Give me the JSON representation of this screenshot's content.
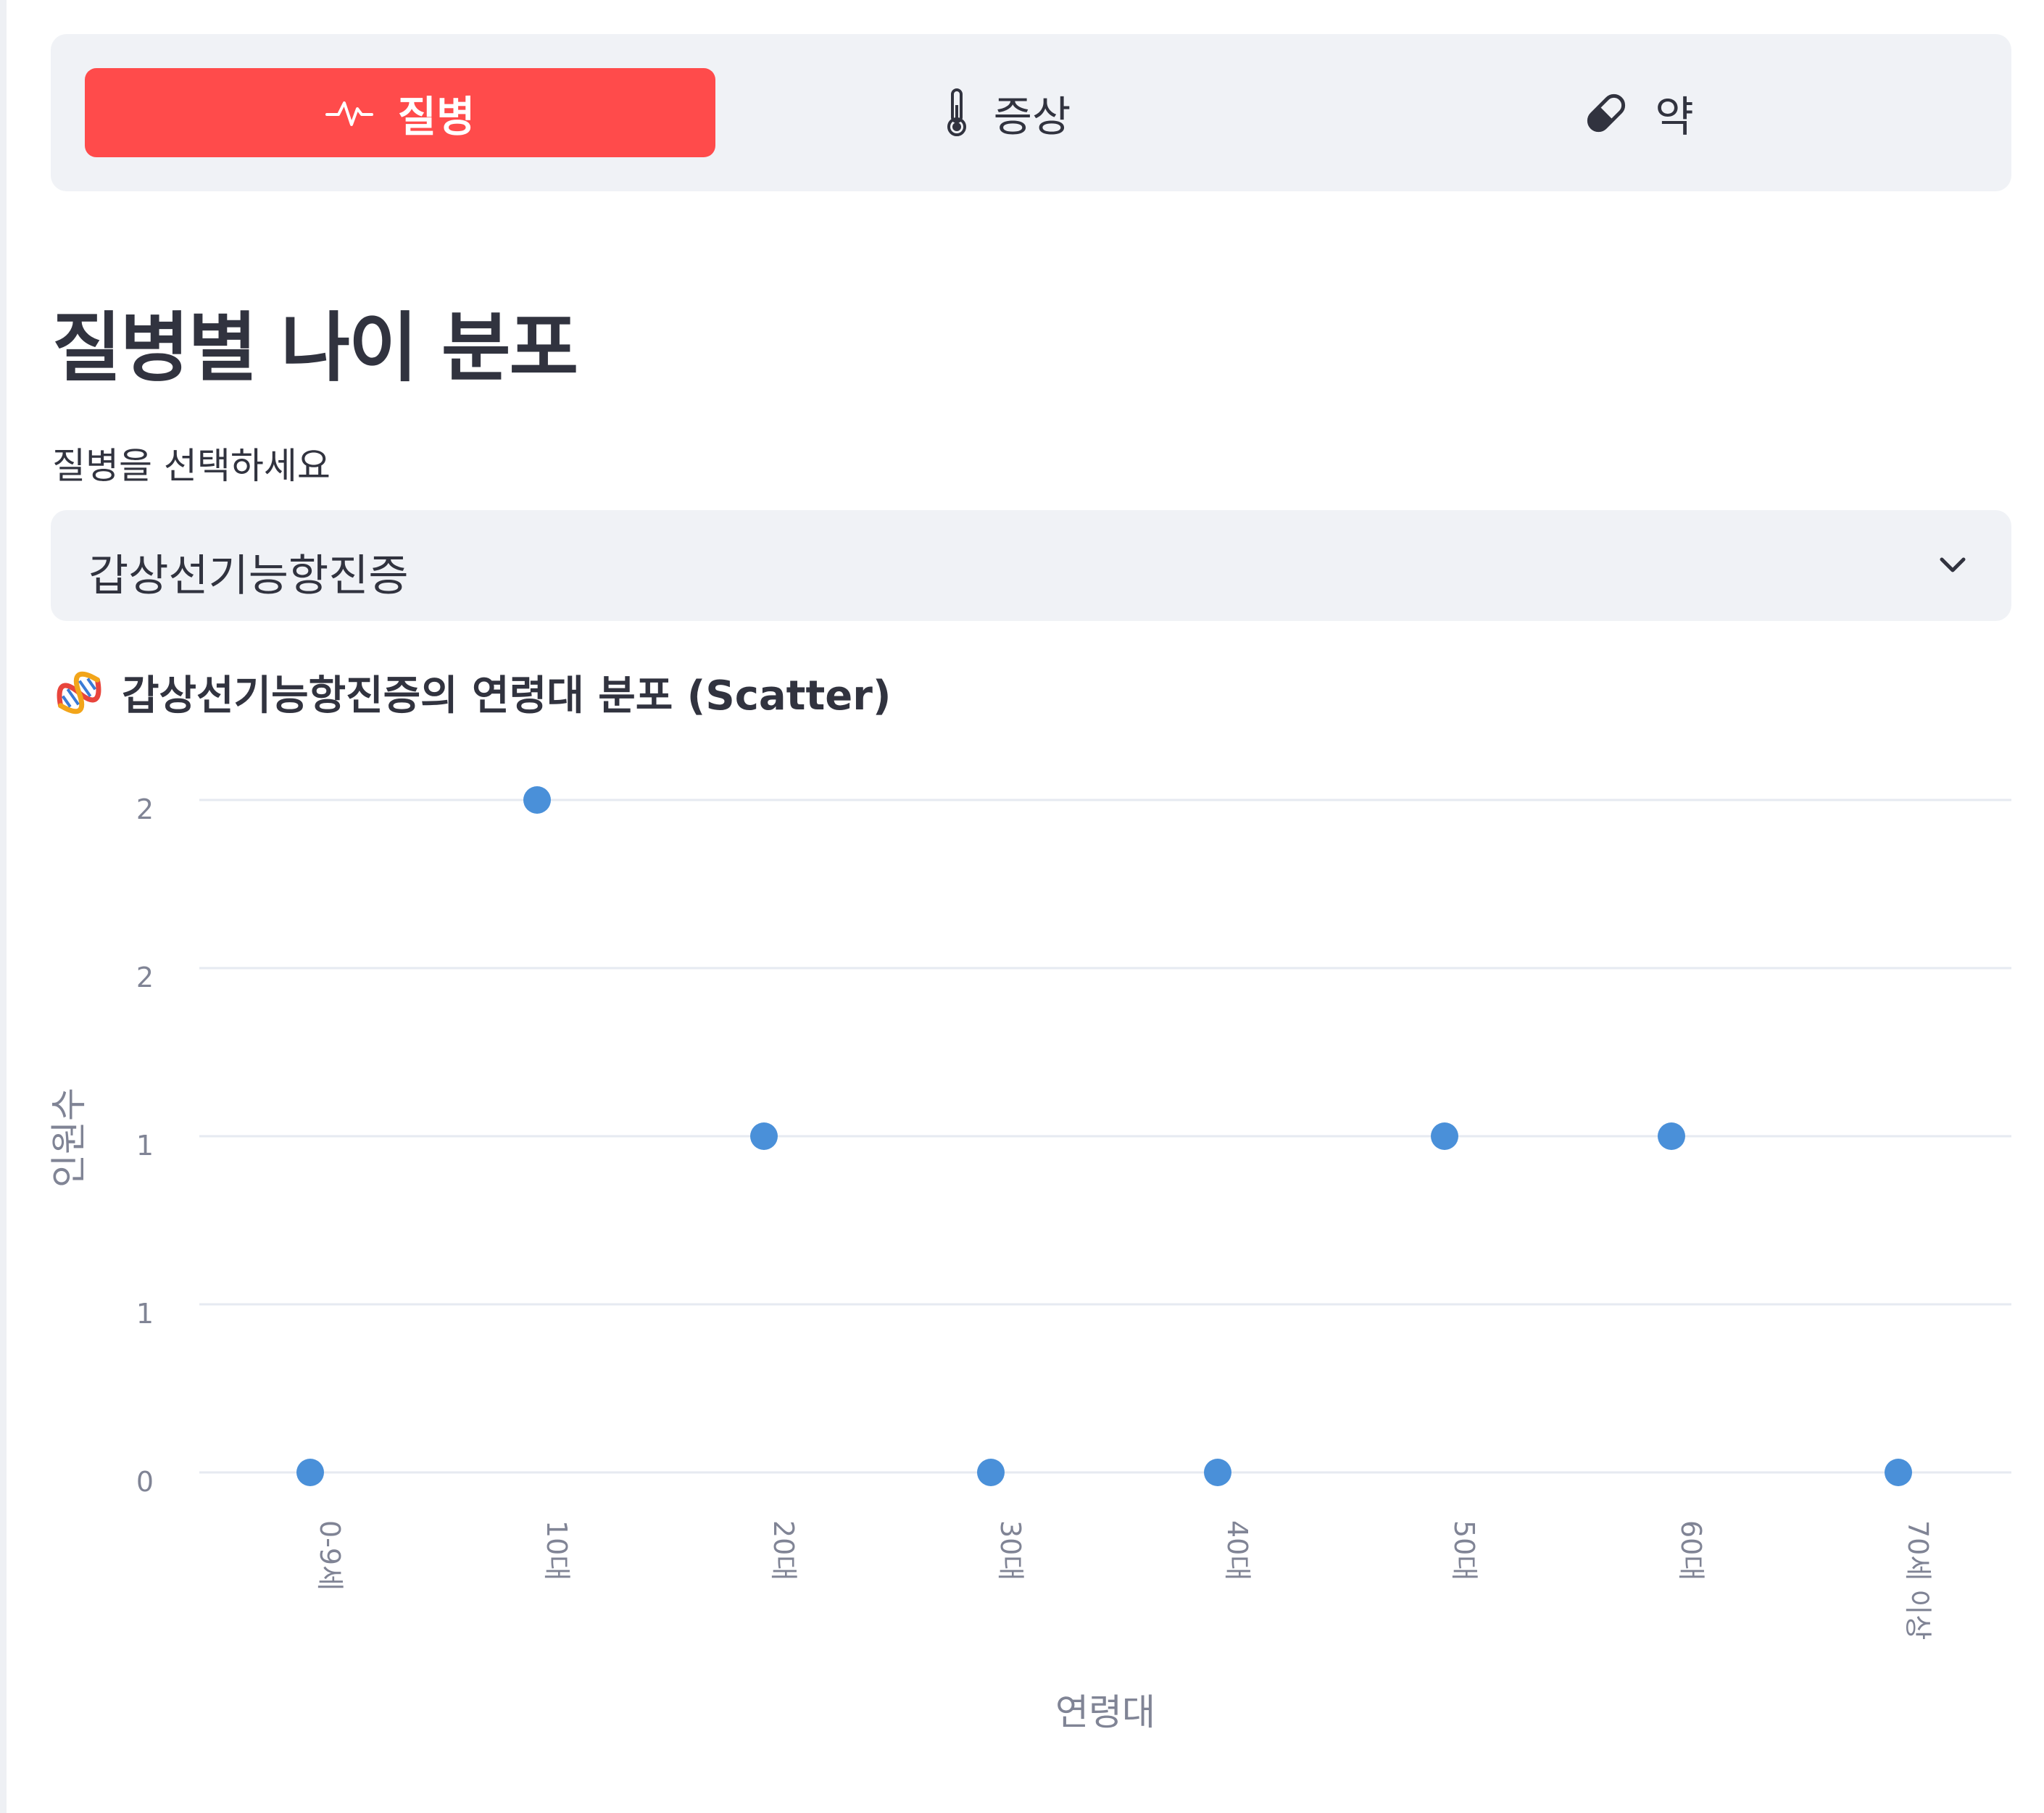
{
  "tabs": [
    {
      "label": "질병",
      "icon": "heartbeat-icon",
      "active": true
    },
    {
      "label": "증상",
      "icon": "thermometer-icon",
      "active": false
    },
    {
      "label": "약",
      "icon": "pill-icon",
      "active": false
    }
  ],
  "page_title": "질병별 나이 분포",
  "select": {
    "label": "질병을 선택하세요",
    "value": "갑상선기능항진증"
  },
  "chart_section_title": "갑상선기능항진증의 연령대 분포 (Scatter)",
  "colors": {
    "accent": "#ff4b4b",
    "point": "#4a90d9",
    "grid": "#e6eaf1"
  },
  "chart_data": {
    "type": "scatter",
    "title": "갑상선기능항진증의 연령대 분포 (Scatter)",
    "xlabel": "연령대",
    "ylabel": "인원수",
    "categories": [
      "0-9세",
      "10대",
      "20대",
      "30대",
      "40대",
      "50대",
      "60대",
      "70세 이상"
    ],
    "values": [
      0,
      2,
      1,
      0,
      0,
      1,
      1,
      0
    ],
    "ylim": [
      0,
      2
    ],
    "y_ticks": [
      {
        "value": 0,
        "label": "0"
      },
      {
        "value": 0.5,
        "label": "1"
      },
      {
        "value": 1,
        "label": "1"
      },
      {
        "value": 1.5,
        "label": "2"
      },
      {
        "value": 2,
        "label": "2"
      }
    ],
    "grid": true
  }
}
